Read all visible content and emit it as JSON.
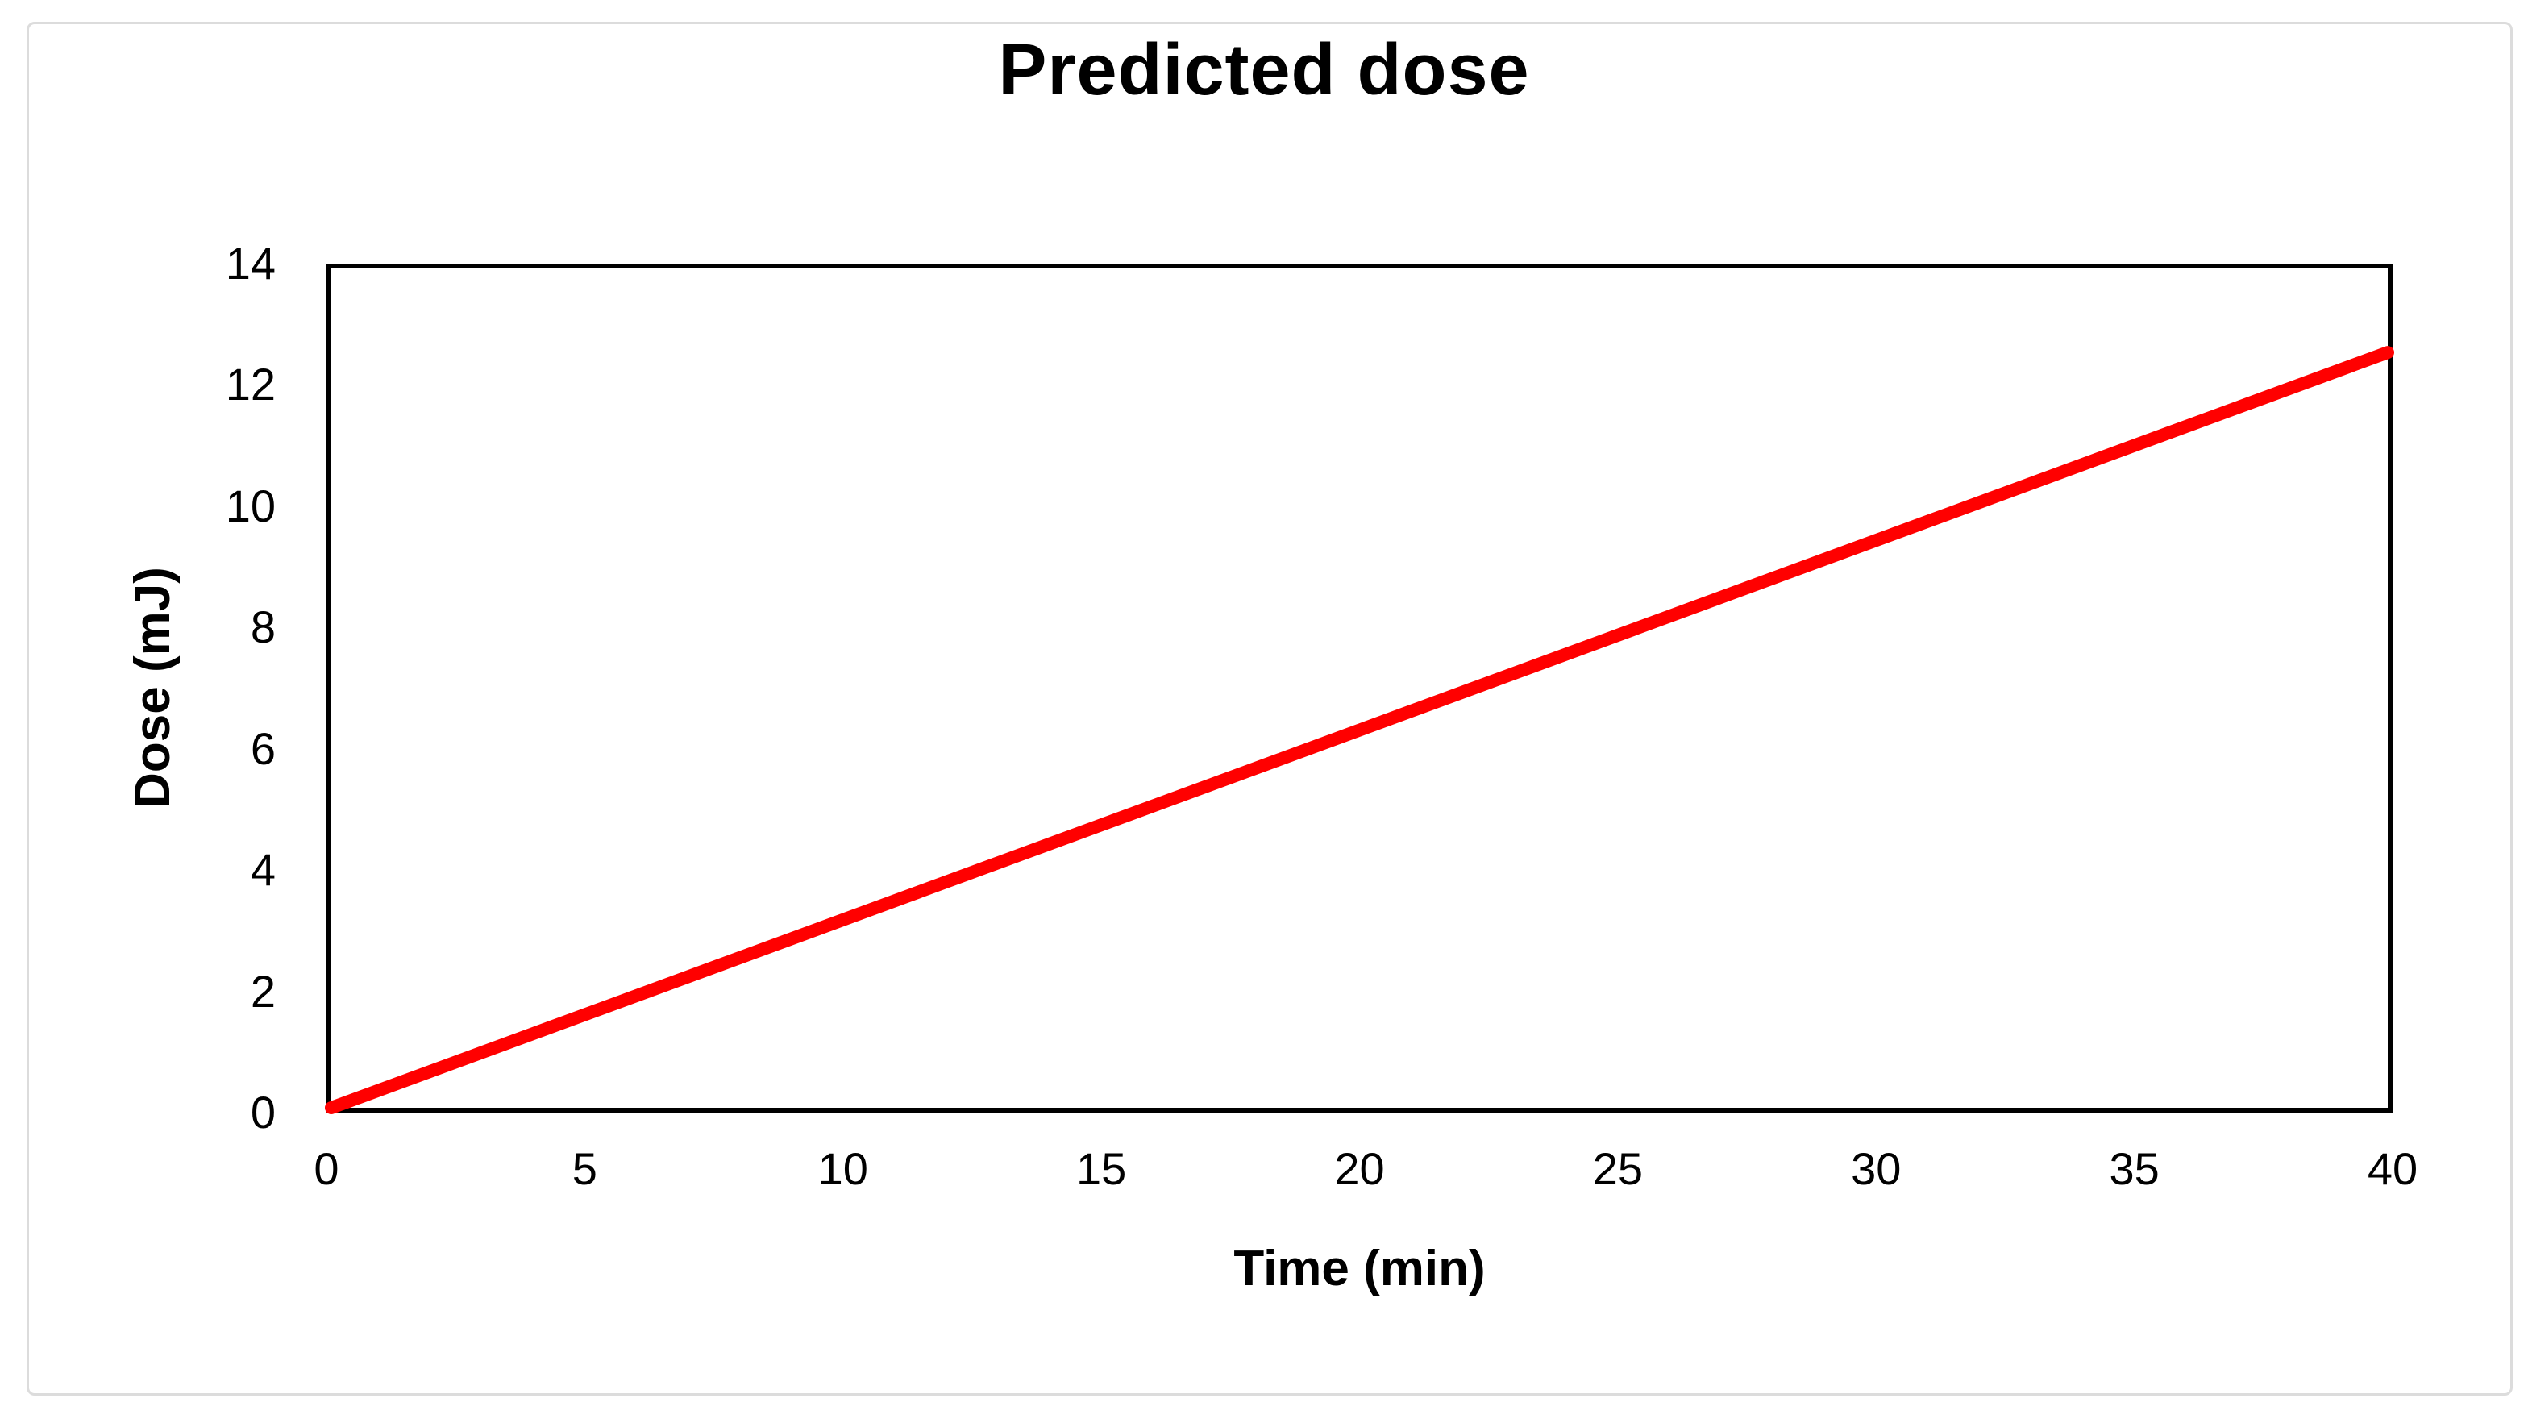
{
  "chart_data": {
    "type": "line",
    "title": "Predicted dose",
    "xlabel": "Time (min)",
    "ylabel": "Dose (mJ)",
    "xlim": [
      0,
      40
    ],
    "ylim": [
      0,
      14
    ],
    "xticks": [
      0,
      5,
      10,
      15,
      20,
      25,
      30,
      35,
      40
    ],
    "yticks": [
      0,
      2,
      4,
      6,
      8,
      10,
      12,
      14
    ],
    "grid": false,
    "legend": "none",
    "series": [
      {
        "name": "predicted-dose",
        "color": "#ff0000",
        "x": [
          0,
          40
        ],
        "y": [
          0,
          12.6
        ]
      }
    ]
  },
  "style": {
    "frame_color": "#000000",
    "outer_border_color": "#dcdcdc",
    "background": "#ffffff",
    "text_color": "#000000"
  }
}
